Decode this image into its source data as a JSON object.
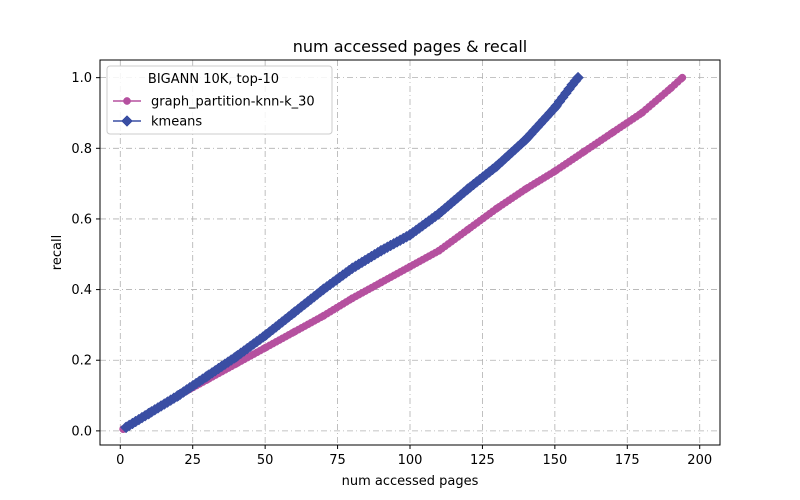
{
  "chart_data": {
    "type": "line",
    "title": "num accessed pages & recall",
    "xlabel": "num accessed pages",
    "ylabel": "recall",
    "xlim": [
      -7,
      207
    ],
    "ylim": [
      -0.04,
      1.05
    ],
    "xticks": [
      "0",
      "25",
      "50",
      "75",
      "100",
      "125",
      "150",
      "175",
      "200"
    ],
    "yticks": [
      "0.0",
      "0.2",
      "0.4",
      "0.6",
      "0.8",
      "1.0"
    ],
    "grid": true,
    "legend": {
      "title": "BIGANN 10K, top-10",
      "placement": "upper-left"
    },
    "series": [
      {
        "name": "graph_partition-knn-k_30",
        "color": "#b5509f",
        "marker": "circle",
        "x": [
          1,
          10,
          20,
          30,
          40,
          50,
          60,
          70,
          80,
          90,
          100,
          110,
          120,
          130,
          140,
          150,
          160,
          170,
          180,
          190,
          194
        ],
        "y": [
          0.005,
          0.05,
          0.1,
          0.145,
          0.19,
          0.235,
          0.28,
          0.325,
          0.375,
          0.42,
          0.465,
          0.51,
          0.57,
          0.63,
          0.685,
          0.735,
          0.79,
          0.845,
          0.9,
          0.97,
          1.0
        ]
      },
      {
        "name": "kmeans",
        "color": "#3a4ea3",
        "marker": "diamond",
        "x": [
          2,
          10,
          20,
          30,
          40,
          50,
          60,
          70,
          80,
          90,
          100,
          110,
          120,
          130,
          140,
          150,
          156,
          158
        ],
        "y": [
          0.01,
          0.05,
          0.1,
          0.155,
          0.21,
          0.27,
          0.335,
          0.4,
          0.46,
          0.51,
          0.555,
          0.615,
          0.685,
          0.75,
          0.825,
          0.915,
          0.98,
          1.0
        ]
      }
    ]
  }
}
